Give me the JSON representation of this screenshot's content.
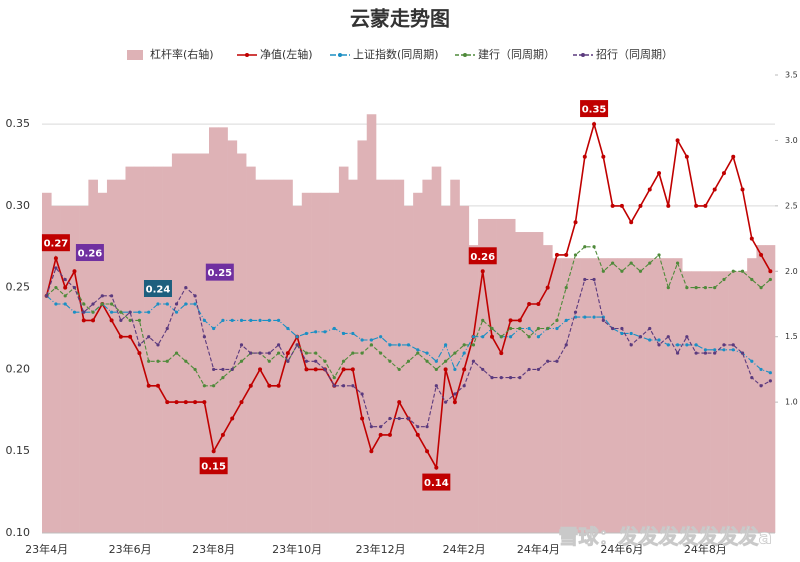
{
  "chart_data": {
    "type": "line",
    "title": "云蒙走势图",
    "watermark": "雪球：发发发发发发发a",
    "categories": [
      "23年4月",
      null,
      null,
      null,
      null,
      null,
      null,
      null,
      null,
      "23年6月",
      null,
      null,
      null,
      null,
      null,
      null,
      null,
      null,
      "23年8月",
      null,
      null,
      null,
      null,
      null,
      null,
      null,
      null,
      "23年10月",
      null,
      null,
      null,
      null,
      null,
      null,
      null,
      null,
      "23年12月",
      null,
      null,
      null,
      null,
      null,
      null,
      null,
      null,
      "24年2月",
      null,
      null,
      null,
      null,
      null,
      null,
      null,
      "24年4月",
      null,
      null,
      null,
      null,
      null,
      null,
      null,
      null,
      "24年6月",
      null,
      null,
      null,
      null,
      null,
      null,
      null,
      null,
      "24年8月",
      null,
      null,
      null,
      null,
      null,
      null,
      null
    ],
    "ylim": [
      0.1,
      0.38
    ],
    "yticks": [
      {
        "value": 0.1,
        "label": "0.10"
      },
      0.15,
      {
        "value": 0.2,
        "label": "0.20"
      },
      0.25,
      {
        "value": 0.3,
        "label": "0.30"
      },
      0.35
    ],
    "y2lim": [
      0,
      3.5
    ],
    "y2ticks": [
      {
        "value": 1,
        "label": "1.0"
      },
      1.5,
      {
        "value": 2,
        "label": "2.0"
      },
      2.5,
      {
        "value": 3,
        "label": "3.0"
      },
      3.5
    ],
    "grid": true,
    "series": [
      {
        "name": "杠杆率(右轴)",
        "type": "bar",
        "axis": "y2",
        "color": "#deb2b6",
        "values": [
          2.6,
          2.5,
          2.5,
          2.5,
          2.5,
          2.7,
          2.6,
          2.7,
          2.7,
          2.8,
          2.8,
          2.8,
          2.8,
          2.8,
          2.9,
          2.9,
          2.9,
          2.9,
          3.1,
          3.1,
          3.0,
          2.9,
          2.8,
          2.7,
          2.7,
          2.7,
          2.7,
          2.5,
          2.6,
          2.6,
          2.6,
          2.6,
          2.8,
          2.7,
          3.0,
          3.2,
          2.7,
          2.7,
          2.7,
          2.5,
          2.6,
          2.7,
          2.8,
          2.5,
          2.7,
          2.5,
          2.2,
          2.4,
          2.4,
          2.4,
          2.4,
          2.3,
          2.3,
          2.3,
          2.2,
          2.1,
          2.1,
          2.1,
          2.1,
          2.1,
          2.1,
          2.1,
          2.1,
          2.1,
          2.1,
          2.1,
          2.1,
          2.1,
          2.1,
          2.0,
          2.0,
          2.0,
          2.0,
          2.0,
          2.0,
          2.0,
          2.1,
          2.2,
          2.2
        ]
      },
      {
        "name": "净值(左轴)",
        "type": "line",
        "dash": "solid",
        "color": "#c00000",
        "values": [
          0.245,
          0.268,
          0.25,
          0.26,
          0.23,
          0.23,
          0.24,
          0.23,
          0.22,
          0.22,
          0.21,
          0.19,
          0.19,
          0.18,
          0.18,
          0.18,
          0.18,
          0.18,
          0.15,
          0.16,
          0.17,
          0.18,
          0.19,
          0.2,
          0.19,
          0.19,
          0.21,
          0.22,
          0.2,
          0.2,
          0.2,
          0.19,
          0.2,
          0.2,
          0.17,
          0.15,
          0.16,
          0.16,
          0.18,
          0.17,
          0.16,
          0.15,
          0.14,
          0.2,
          0.18,
          0.2,
          0.22,
          0.26,
          0.22,
          0.21,
          0.23,
          0.23,
          0.24,
          0.24,
          0.25,
          0.27,
          0.27,
          0.29,
          0.33,
          0.35,
          0.33,
          0.3,
          0.3,
          0.29,
          0.3,
          0.31,
          0.32,
          0.3,
          0.34,
          0.33,
          0.3,
          0.3,
          0.31,
          0.32,
          0.33,
          0.31,
          0.28,
          0.27,
          0.26
        ],
        "value_labels": [
          null,
          "0.27",
          null,
          null,
          null,
          null,
          null,
          null,
          null,
          null,
          null,
          null,
          null,
          null,
          null,
          null,
          null,
          null,
          "0.15",
          null,
          null,
          null,
          null,
          null,
          null,
          null,
          null,
          null,
          null,
          null,
          null,
          null,
          null,
          null,
          null,
          null,
          null,
          null,
          null,
          null,
          null,
          null,
          "0.14",
          null,
          null,
          null,
          null,
          "0.26",
          null,
          null,
          null,
          null,
          null,
          null,
          null,
          null,
          null,
          null,
          null,
          "0.35",
          null,
          null,
          null,
          null,
          null,
          null,
          null,
          null,
          null,
          null,
          null,
          null,
          null,
          null,
          null,
          null,
          null,
          null,
          null
        ]
      },
      {
        "name": "上证指数(同周期)",
        "type": "line",
        "dash": "dashdot",
        "color": "#1b8fc4",
        "label_color": "#1d5f7e",
        "values": [
          0.245,
          0.24,
          0.24,
          0.235,
          0.235,
          0.235,
          0.24,
          0.235,
          0.235,
          0.235,
          0.235,
          0.235,
          0.24,
          0.24,
          0.235,
          0.24,
          0.24,
          0.23,
          0.225,
          0.23,
          0.23,
          0.23,
          0.23,
          0.23,
          0.23,
          0.23,
          0.225,
          0.22,
          0.222,
          0.223,
          0.223,
          0.225,
          0.222,
          0.222,
          0.218,
          0.218,
          0.22,
          0.215,
          0.215,
          0.215,
          0.212,
          0.21,
          0.205,
          0.215,
          0.2,
          0.21,
          0.22,
          0.22,
          0.225,
          0.22,
          0.22,
          0.225,
          0.225,
          0.22,
          0.225,
          0.225,
          0.23,
          0.232,
          0.232,
          0.232,
          0.232,
          0.225,
          0.222,
          0.222,
          0.22,
          0.218,
          0.218,
          0.215,
          0.215,
          0.215,
          0.215,
          0.212,
          0.212,
          0.212,
          0.212,
          0.21,
          0.205,
          0.2,
          0.198
        ],
        "value_labels": [
          null,
          null,
          null,
          null,
          null,
          null,
          null,
          null,
          null,
          null,
          null,
          null,
          "0.24",
          null,
          null,
          null,
          null,
          null,
          null,
          null,
          null,
          null,
          null,
          null,
          null,
          null,
          null,
          null,
          null,
          null,
          null,
          null,
          null,
          null,
          null,
          null,
          null,
          null,
          null,
          null,
          null,
          null,
          null,
          null,
          null,
          null,
          null,
          null,
          null,
          null,
          null,
          null,
          null,
          null,
          null,
          null,
          null,
          null,
          null,
          null,
          null,
          null,
          null,
          null,
          null,
          null,
          null,
          null,
          null,
          null,
          null,
          null,
          null,
          null,
          null,
          null,
          null,
          null,
          null
        ]
      },
      {
        "name": "建行（同周期）",
        "type": "line",
        "dash": "dashed",
        "color": "#4f8a3a",
        "values": [
          0.245,
          0.25,
          0.245,
          0.25,
          0.24,
          0.235,
          0.24,
          0.24,
          0.235,
          0.23,
          0.23,
          0.205,
          0.205,
          0.205,
          0.21,
          0.205,
          0.2,
          0.19,
          0.19,
          0.195,
          0.2,
          0.205,
          0.21,
          0.21,
          0.205,
          0.21,
          0.205,
          0.215,
          0.21,
          0.21,
          0.205,
          0.195,
          0.205,
          0.21,
          0.21,
          0.215,
          0.21,
          0.205,
          0.2,
          0.205,
          0.21,
          0.205,
          0.2,
          0.205,
          0.21,
          0.215,
          0.215,
          0.23,
          0.225,
          0.22,
          0.225,
          0.225,
          0.22,
          0.225,
          0.225,
          0.23,
          0.25,
          0.27,
          0.275,
          0.275,
          0.26,
          0.265,
          0.26,
          0.265,
          0.26,
          0.265,
          0.27,
          0.25,
          0.265,
          0.25,
          0.25,
          0.25,
          0.25,
          0.255,
          0.26,
          0.26,
          0.255,
          0.25,
          0.255
        ]
      },
      {
        "name": "招行（同周期）",
        "type": "line",
        "dash": "dashed",
        "color": "#5b3a7e",
        "label_color": "#7030a0",
        "values": [
          0.245,
          0.262,
          0.255,
          0.25,
          0.235,
          0.24,
          0.245,
          0.245,
          0.23,
          0.235,
          0.215,
          0.22,
          0.215,
          0.225,
          0.24,
          0.25,
          0.245,
          0.22,
          0.2,
          0.2,
          0.2,
          0.215,
          0.21,
          0.21,
          0.21,
          0.215,
          0.205,
          0.215,
          0.205,
          0.205,
          0.2,
          0.19,
          0.19,
          0.19,
          0.185,
          0.165,
          0.165,
          0.17,
          0.17,
          0.17,
          0.165,
          0.165,
          0.19,
          0.18,
          0.185,
          0.19,
          0.205,
          0.2,
          0.195,
          0.195,
          0.195,
          0.195,
          0.2,
          0.2,
          0.205,
          0.205,
          0.215,
          0.235,
          0.255,
          0.255,
          0.23,
          0.225,
          0.225,
          0.215,
          0.22,
          0.225,
          0.215,
          0.22,
          0.21,
          0.22,
          0.21,
          0.21,
          0.21,
          0.215,
          0.215,
          0.21,
          0.195,
          0.19,
          0.193
        ],
        "value_labels": [
          null,
          "0.26",
          null,
          null,
          null,
          null,
          null,
          null,
          null,
          null,
          null,
          null,
          null,
          null,
          null,
          "0.25",
          null,
          null,
          null,
          null,
          null,
          null,
          null,
          null,
          null,
          null,
          null,
          null,
          null,
          null,
          null,
          null,
          null,
          null,
          null,
          null,
          null,
          null,
          null,
          null,
          null,
          null,
          null,
          null,
          null,
          null,
          null,
          null,
          null,
          null,
          null,
          null,
          null,
          null,
          null,
          null,
          null,
          null,
          null,
          null,
          null,
          null,
          null,
          null,
          null,
          null,
          null,
          null,
          null,
          null,
          null,
          null,
          null,
          null,
          null,
          null,
          null,
          null,
          null
        ]
      }
    ]
  }
}
